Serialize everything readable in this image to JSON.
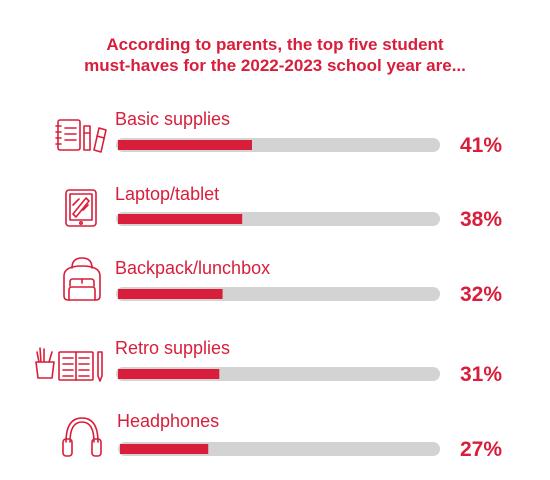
{
  "title_lines": [
    "According to parents, the top five student",
    "must-haves for the 2022-2023 school year are..."
  ],
  "colors": {
    "accent": "#d81e3a",
    "track": "#d3d3d3",
    "icon": "#d81e3a"
  },
  "chart_data": {
    "type": "bar",
    "orientation": "horizontal",
    "title": "According to parents, the top five student must-haves for the 2022-2023 school year are...",
    "categories": [
      "Basic supplies",
      "Laptop/tablet",
      "Backpack/lunchbox",
      "Retro supplies",
      "Headphones"
    ],
    "values": [
      41,
      38,
      32,
      31,
      27
    ],
    "value_labels": [
      "41%",
      "38%",
      "32%",
      "31%",
      "27%"
    ],
    "icons": [
      "notebook-pencil-icon",
      "tablet-icon",
      "backpack-icon",
      "pencil-cup-notebook-icon",
      "headphones-icon"
    ],
    "xlim": [
      0,
      100
    ],
    "grid": false,
    "legend": "none"
  }
}
